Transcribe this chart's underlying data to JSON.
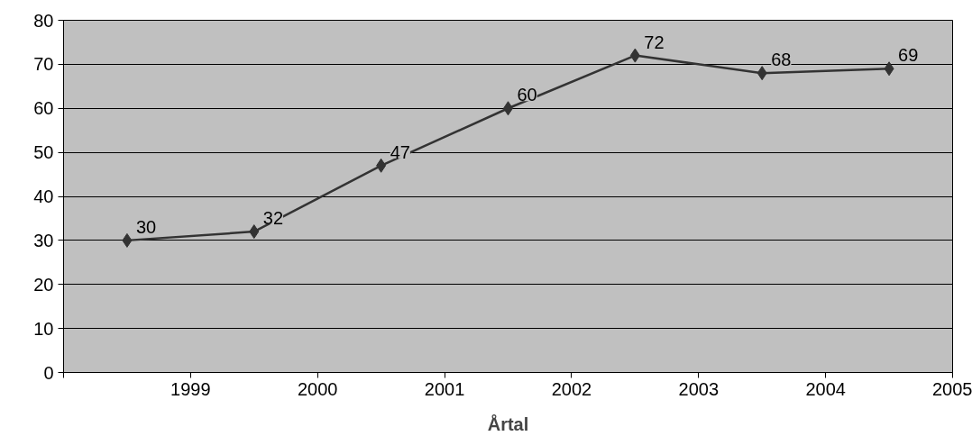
{
  "chart_data": {
    "type": "line",
    "xlabel": "Årtal",
    "x": [
      1998.5,
      1999.5,
      2000.5,
      2001.5,
      2002.5,
      2003.5,
      2004.5
    ],
    "series": [
      {
        "color": "#333333",
        "values": [
          30,
          32,
          47,
          60,
          72,
          68,
          69
        ]
      }
    ],
    "xlim": [
      1998,
      2005
    ],
    "xticks": [
      {
        "value": 1998,
        "label": null
      },
      1999,
      2000,
      2001,
      2002,
      2003,
      2004,
      2005
    ],
    "ylim": [
      0,
      80
    ],
    "yticks": [
      0,
      10,
      20,
      30,
      40,
      50,
      60,
      70,
      80
    ],
    "grid": "y",
    "marker": "diamond",
    "line_style": "solid",
    "data_labels": true
  }
}
